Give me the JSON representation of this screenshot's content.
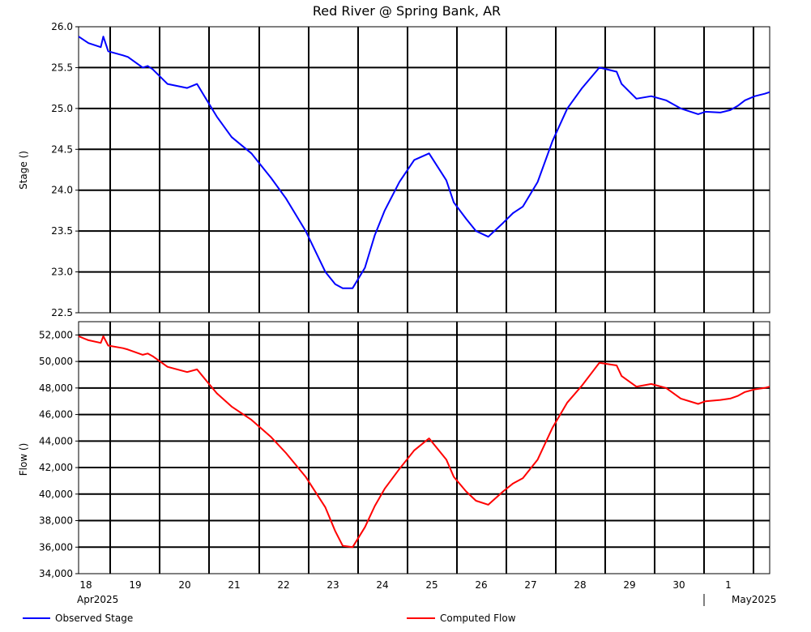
{
  "title": "Red River @ Spring Bank, AR",
  "x_day_labels": [
    "18",
    "19",
    "20",
    "21",
    "22",
    "23",
    "24",
    "25",
    "26",
    "27",
    "28",
    "29",
    "30",
    "1"
  ],
  "x_month_labels": [
    "Apr2025",
    "May2025"
  ],
  "legend": [
    {
      "label": "Observed Stage",
      "color": "#0000ff"
    },
    {
      "label": "Computed Flow",
      "color": "#ff0000"
    }
  ],
  "chart_data": [
    {
      "type": "line",
      "ylabel": "Stage ()",
      "ylim": [
        22.5,
        26.0
      ],
      "yticks": [
        "26.0",
        "25.5",
        "25.0",
        "24.5",
        "24.0",
        "23.5",
        "23.0",
        "22.5"
      ],
      "xlim": [
        "2025-04-18",
        "2025-05-02"
      ],
      "grid": true,
      "series": [
        {
          "name": "Observed Stage",
          "color": "#0000ff",
          "x_days": [
            0,
            0.2,
            0.45,
            0.5,
            0.6,
            0.9,
            1.0,
            1.3,
            1.4,
            1.5,
            1.8,
            2.2,
            2.4,
            2.6,
            2.8,
            3.1,
            3.5,
            3.9,
            4.2,
            4.6,
            5.0,
            5.2,
            5.35,
            5.55,
            5.8,
            6.0,
            6.2,
            6.5,
            6.8,
            7.1,
            7.45,
            7.6,
            7.85,
            8.05,
            8.3,
            8.6,
            8.8,
            9.0,
            9.3,
            9.6,
            9.9,
            10.2,
            10.55,
            10.9,
            11.0,
            11.3,
            11.6,
            11.9,
            12.2,
            12.55,
            12.7,
            13.0,
            13.2,
            13.35,
            13.5,
            13.7,
            13.9,
            14.0
          ],
          "values": [
            25.88,
            25.8,
            25.75,
            25.88,
            25.7,
            25.65,
            25.63,
            25.5,
            25.52,
            25.48,
            25.3,
            25.25,
            25.3,
            25.1,
            24.9,
            24.65,
            24.45,
            24.15,
            23.9,
            23.5,
            23.0,
            22.85,
            22.8,
            22.8,
            23.05,
            23.45,
            23.75,
            24.1,
            24.37,
            24.45,
            24.12,
            23.85,
            23.65,
            23.5,
            23.43,
            23.6,
            23.72,
            23.8,
            24.1,
            24.6,
            25.0,
            25.25,
            25.5,
            25.45,
            25.3,
            25.12,
            25.15,
            25.1,
            25.0,
            24.93,
            24.96,
            24.95,
            24.98,
            25.03,
            25.1,
            25.15,
            25.18,
            25.2
          ]
        }
      ]
    },
    {
      "type": "line",
      "ylabel": "Flow ()",
      "ylim": [
        34000,
        53000
      ],
      "yticks": [
        "52,000",
        "50,000",
        "48,000",
        "46,000",
        "44,000",
        "42,000",
        "40,000",
        "38,000",
        "36,000",
        "34,000"
      ],
      "xlim": [
        "2025-04-18",
        "2025-05-02"
      ],
      "grid": true,
      "series": [
        {
          "name": "Computed Flow",
          "color": "#ff0000",
          "x_days": [
            0,
            0.2,
            0.45,
            0.5,
            0.6,
            0.9,
            1.0,
            1.3,
            1.4,
            1.5,
            1.8,
            2.2,
            2.4,
            2.6,
            2.8,
            3.1,
            3.5,
            3.9,
            4.2,
            4.6,
            5.0,
            5.2,
            5.35,
            5.55,
            5.8,
            6.0,
            6.2,
            6.5,
            6.8,
            7.1,
            7.45,
            7.6,
            7.85,
            8.05,
            8.3,
            8.6,
            8.8,
            9.0,
            9.3,
            9.6,
            9.9,
            10.2,
            10.55,
            10.9,
            11.0,
            11.3,
            11.6,
            11.9,
            12.2,
            12.55,
            12.7,
            13.0,
            13.2,
            13.35,
            13.5,
            13.7,
            13.9,
            14.0
          ],
          "values": [
            51900,
            51600,
            51400,
            51900,
            51200,
            51000,
            50900,
            50500,
            50600,
            50400,
            49600,
            49200,
            49400,
            48500,
            47600,
            46600,
            45600,
            44300,
            43100,
            41300,
            39000,
            37200,
            36100,
            36000,
            37500,
            39100,
            40400,
            41900,
            43300,
            44200,
            42600,
            41300,
            40200,
            39500,
            39200,
            40200,
            40800,
            41200,
            42600,
            45000,
            46900,
            48200,
            49900,
            49700,
            48900,
            48100,
            48300,
            48000,
            47200,
            46800,
            47000,
            47100,
            47200,
            47400,
            47700,
            47900,
            48000,
            48100
          ]
        }
      ]
    }
  ]
}
